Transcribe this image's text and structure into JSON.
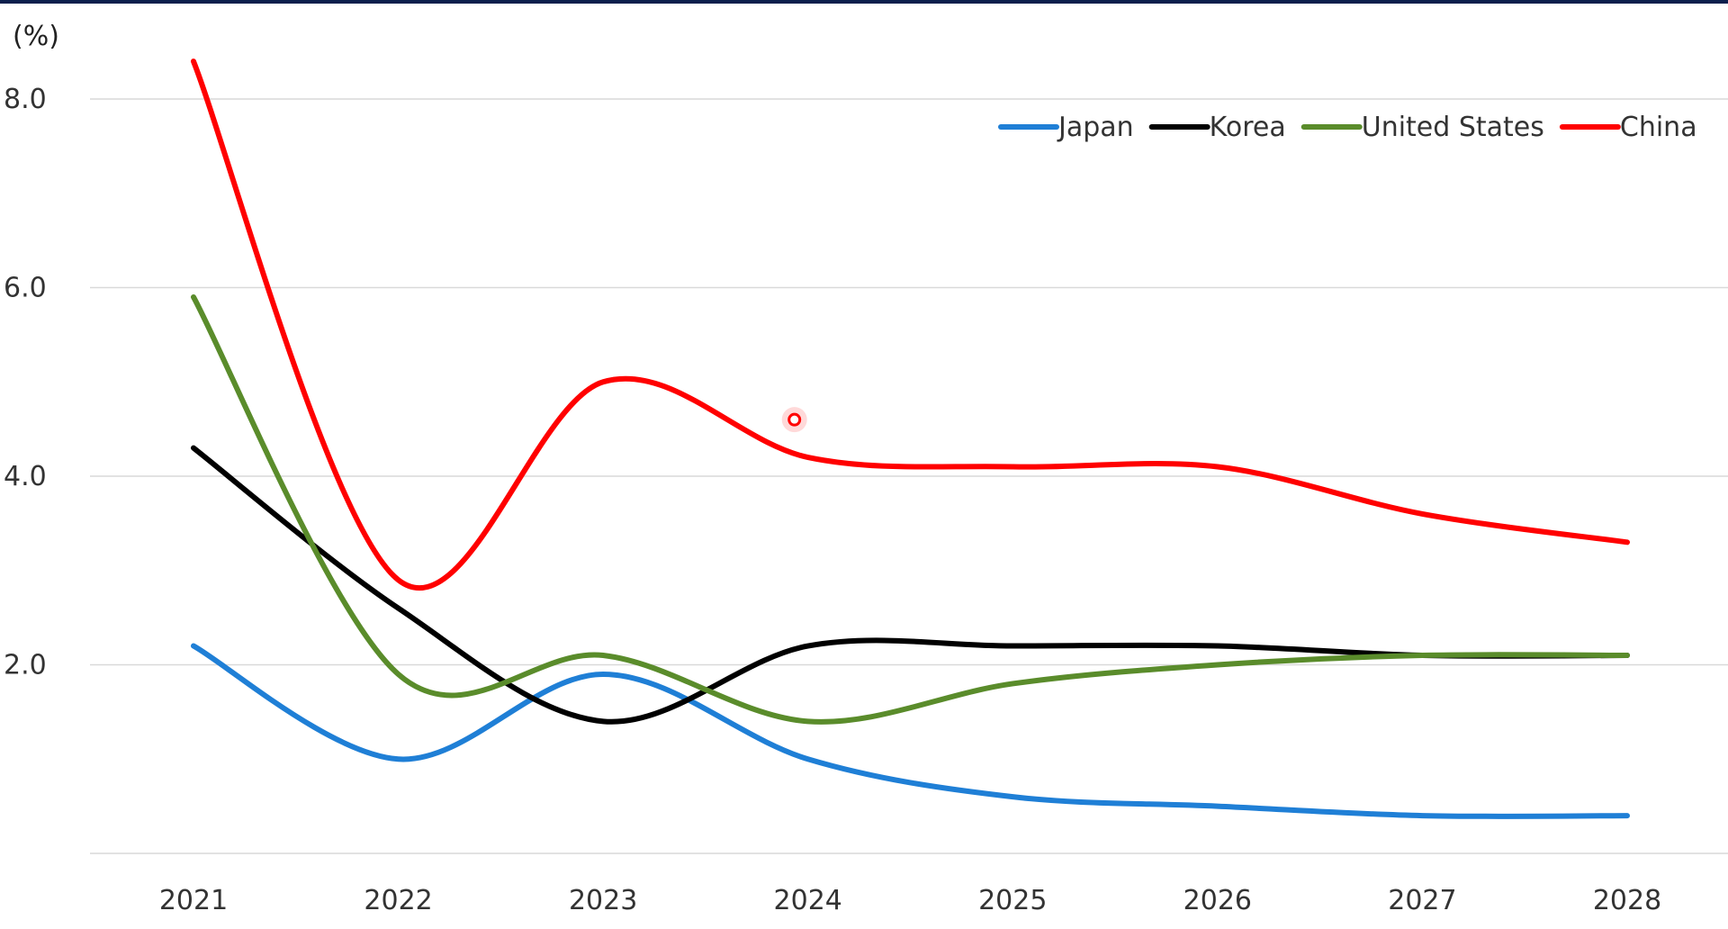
{
  "chart_data": {
    "type": "line",
    "title": "",
    "xlabel": "",
    "ylabel": "(%)",
    "categories": [
      "2021",
      "2022",
      "2023",
      "2024",
      "2025",
      "2026",
      "2027",
      "2028"
    ],
    "ylim": [
      0,
      8.0
    ],
    "y_ticks": [
      "",
      "2.0",
      "4.0",
      "6.0",
      "8.0"
    ],
    "grid": true,
    "legend_position": "top-right",
    "series": [
      {
        "name": "Japan",
        "color": "#1f7fd6",
        "values": [
          2.2,
          1.0,
          1.9,
          1.0,
          0.6,
          0.5,
          0.4,
          0.4
        ]
      },
      {
        "name": "Korea",
        "color": "#000000",
        "values": [
          4.3,
          2.6,
          1.4,
          2.2,
          2.2,
          2.2,
          2.1,
          2.1
        ]
      },
      {
        "name": "United States",
        "color": "#5a8c2b",
        "values": [
          5.9,
          1.9,
          2.1,
          1.4,
          1.8,
          2.0,
          2.1,
          2.1
        ]
      },
      {
        "name": "China",
        "color": "#ff0000",
        "values": [
          8.4,
          2.9,
          5.0,
          4.2,
          4.1,
          4.1,
          3.6,
          3.3
        ]
      }
    ],
    "annotations": [
      {
        "type": "marker",
        "x": "2024",
        "y": 4.6,
        "color": "#ff0000"
      }
    ]
  }
}
